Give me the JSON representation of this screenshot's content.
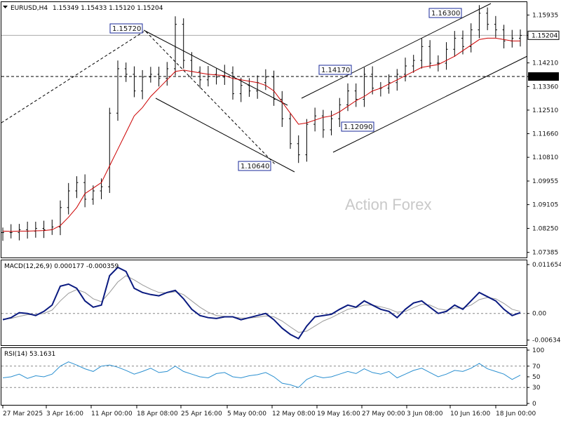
{
  "header": {
    "symbol": "EURUSD,H4",
    "ohlc": "1.15349 1.15433 1.15120 1.15204"
  },
  "watermark": "Action Forex",
  "colors": {
    "price": "#000000",
    "ema": "#cc0000",
    "macd": "#0a1a80",
    "signal": "#999999",
    "rsi": "#2a8fd0",
    "grid": "#888888"
  },
  "chart_data": [
    {
      "type": "line",
      "title": "EURUSD,H4",
      "style": "ohlc bars with moving average",
      "price_ticks": [
        "1.15935",
        "1.15204",
        "1.14210",
        "1.13720",
        "1.13360",
        "1.12510",
        "1.11660",
        "1.10810",
        "1.09955",
        "1.09105",
        "1.08250",
        "1.07385"
      ],
      "current_price_label": "1.15204",
      "horizontal_level": "1.13720",
      "annotations": [
        {
          "label": "1.15720",
          "x": "18 Apr",
          "y": 1.1572
        },
        {
          "label": "1.10640",
          "x": "12 May",
          "y": 1.1064
        },
        {
          "label": "1.14170",
          "x": "22 May",
          "y": 1.1417
        },
        {
          "label": "1.12090",
          "x": "29 May",
          "y": 1.1209
        },
        {
          "label": "1.16300",
          "x": "11 Jun",
          "y": 1.163
        }
      ],
      "ylim": [
        1.072,
        1.164
      ],
      "series": [
        {
          "values": [
            1.081,
            1.081,
            1.082,
            1.0815,
            1.0825,
            1.082,
            1.083,
            1.09,
            1.096,
            1.099,
            1.093,
            1.096,
            1.0975,
            1.124,
            1.14,
            1.138,
            1.132,
            1.137,
            1.138,
            1.1365,
            1.14,
            1.156,
            1.143,
            1.139,
            1.136,
            1.138,
            1.137,
            1.1385,
            1.131,
            1.134,
            1.132,
            1.135,
            1.137,
            1.129,
            1.122,
            1.113,
            1.109,
            1.12,
            1.123,
            1.118,
            1.122,
            1.127,
            1.132,
            1.129,
            1.138,
            1.133,
            1.133,
            1.135,
            1.138,
            1.141,
            1.143,
            1.148,
            1.142,
            1.142,
            1.147,
            1.151,
            1.148,
            1.154,
            1.16,
            1.156,
            1.154,
            1.15,
            1.151,
            1.152
          ]
        },
        {
          "values": [
            1.0815,
            1.0814,
            1.0815,
            1.0815,
            1.0816,
            1.0817,
            1.082,
            1.0835,
            1.0865,
            1.09,
            1.095,
            1.097,
            1.099,
            1.105,
            1.111,
            1.117,
            1.123,
            1.126,
            1.13,
            1.133,
            1.136,
            1.139,
            1.1395,
            1.139,
            1.1385,
            1.138,
            1.1378,
            1.1375,
            1.1365,
            1.136,
            1.1355,
            1.135,
            1.134,
            1.132,
            1.128,
            1.124,
            1.12,
            1.1205,
            1.1215,
            1.1225,
            1.123,
            1.1245,
            1.1265,
            1.1285,
            1.13,
            1.132,
            1.133,
            1.1345,
            1.136,
            1.1375,
            1.139,
            1.1405,
            1.141,
            1.1415,
            1.143,
            1.1445,
            1.1465,
            1.1485,
            1.1505,
            1.151,
            1.151,
            1.1505,
            1.15,
            1.15
          ]
        }
      ]
    },
    {
      "type": "line",
      "title": "MACD(12,26,9) 0.000177 -0.000359",
      "y_ticks": [
        "0.011654",
        "0.00",
        "-0.006345"
      ],
      "ylim": [
        -0.0074,
        0.0125
      ],
      "series": [
        {
          "values": [
            -0.0015,
            -0.001,
            0.0002,
            0.0,
            -0.0005,
            0.0005,
            0.002,
            0.0065,
            0.007,
            0.006,
            0.003,
            0.0015,
            0.002,
            0.009,
            0.011,
            0.01,
            0.006,
            0.005,
            0.0045,
            0.0042,
            0.005,
            0.0055,
            0.0035,
            0.001,
            -0.0005,
            -0.001,
            -0.0012,
            -0.0008,
            -0.0008,
            -0.0015,
            -0.001,
            -0.0005,
            0.0,
            -0.0015,
            -0.0035,
            -0.005,
            -0.006,
            -0.003,
            -0.0008,
            -0.0005,
            -0.0002,
            0.001,
            0.002,
            0.0015,
            0.003,
            0.002,
            0.001,
            0.0005,
            -0.001,
            0.001,
            0.0025,
            0.003,
            0.0015,
            0.0,
            0.0005,
            0.002,
            0.001,
            0.003,
            0.005,
            0.004,
            0.003,
            0.001,
            -0.0005,
            0.0002
          ]
        },
        {
          "values": [
            -0.0013,
            -0.0012,
            -0.0007,
            -0.0003,
            -0.0003,
            0.0,
            0.0008,
            0.003,
            0.0048,
            0.0057,
            0.005,
            0.0035,
            0.0028,
            0.005,
            0.0075,
            0.009,
            0.008,
            0.0068,
            0.0058,
            0.005,
            0.0049,
            0.0052,
            0.0045,
            0.003,
            0.0015,
            0.0003,
            -0.0005,
            -0.0007,
            -0.0008,
            -0.0011,
            -0.0011,
            -0.0009,
            -0.0006,
            -0.0008,
            -0.0018,
            -0.0032,
            -0.0045,
            -0.0042,
            -0.003,
            -0.0018,
            -0.001,
            0.0,
            0.001,
            0.0014,
            0.002,
            0.002,
            0.0016,
            0.0011,
            0.0003,
            0.0005,
            0.0014,
            0.0022,
            0.002,
            0.0011,
            0.0008,
            0.0013,
            0.0013,
            0.002,
            0.0033,
            0.0038,
            0.0035,
            0.0024,
            0.001,
            0.0005
          ]
        }
      ]
    },
    {
      "type": "line",
      "title": "RSI(14) 53.1631",
      "y_ticks": [
        "100",
        "70",
        "50",
        "30",
        "0"
      ],
      "levels": [
        70,
        30
      ],
      "ylim": [
        0,
        100
      ],
      "x_tick_labels": [
        "27 Mar 2025",
        "3 Apr 16:00",
        "11 Apr 00:00",
        "18 Apr 08:00",
        "25 Apr 16:00",
        "5 May 00:00",
        "12 May 08:00",
        "19 May 16:00",
        "27 May 00:00",
        "3 Jun 08:00",
        "10 Jun 16:00",
        "18 Jun 00:00"
      ],
      "series": [
        {
          "values": [
            48,
            50,
            55,
            47,
            52,
            50,
            55,
            70,
            78,
            72,
            65,
            60,
            70,
            72,
            68,
            62,
            55,
            60,
            66,
            58,
            60,
            70,
            60,
            55,
            50,
            48,
            56,
            58,
            50,
            48,
            52,
            54,
            58,
            50,
            38,
            35,
            30,
            45,
            52,
            48,
            50,
            55,
            60,
            56,
            65,
            58,
            55,
            60,
            48,
            55,
            62,
            66,
            58,
            50,
            55,
            62,
            60,
            66,
            75,
            65,
            60,
            55,
            45,
            53
          ]
        }
      ]
    }
  ]
}
